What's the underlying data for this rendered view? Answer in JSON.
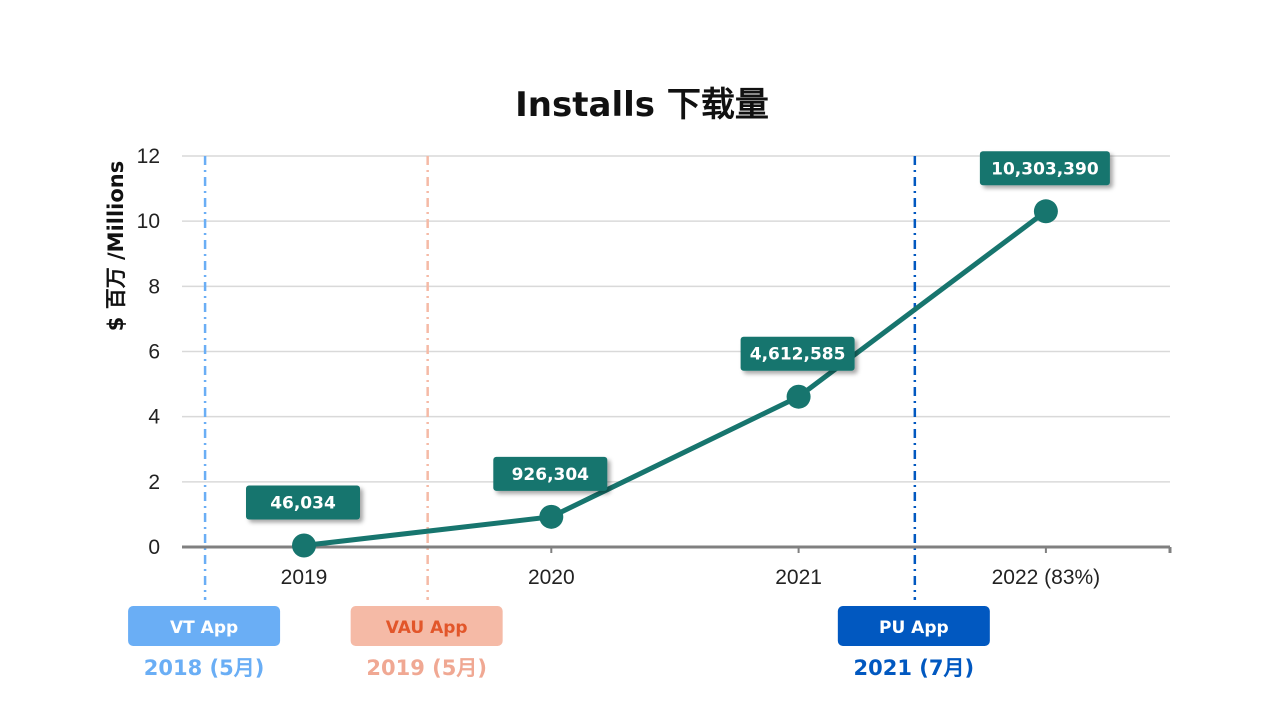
{
  "chart_data": {
    "type": "line",
    "title": "Installs 下载量",
    "ylabel": "$ 百万 /Millions",
    "xlabel": "",
    "categories": [
      "2019",
      "2020",
      "2021",
      "2022 (83%)"
    ],
    "values": [
      0.046034,
      0.926304,
      4.612585,
      10.30339
    ],
    "data_labels": [
      "46,034",
      "926,304",
      "4,612,585",
      "10,303,390"
    ],
    "ylim": [
      0,
      12
    ],
    "yticks": [
      0,
      2,
      4,
      6,
      8,
      10,
      12
    ],
    "ytick_labels": [
      "0",
      "2",
      "4",
      "6",
      "8",
      "10",
      "12"
    ],
    "grid": true,
    "series_color": "#17756E",
    "milestones": [
      {
        "label": "VT App",
        "date": "2018 (5月)",
        "color": "#6AAEF5",
        "label_color": "#FFFFFF",
        "date_color": "#6AAEF5",
        "x_index": -0.4
      },
      {
        "label": "VAU App",
        "date": "2019 (5月)",
        "color": "#F5BAA6",
        "label_color": "#E2562A",
        "date_color": "#F0A893",
        "x_index": 0.5
      },
      {
        "label": "PU App",
        "date": "2021 (7月)",
        "color": "#0158C0",
        "label_color": "#FFFFFF",
        "date_color": "#0158C0",
        "x_index": 2.47
      }
    ]
  }
}
